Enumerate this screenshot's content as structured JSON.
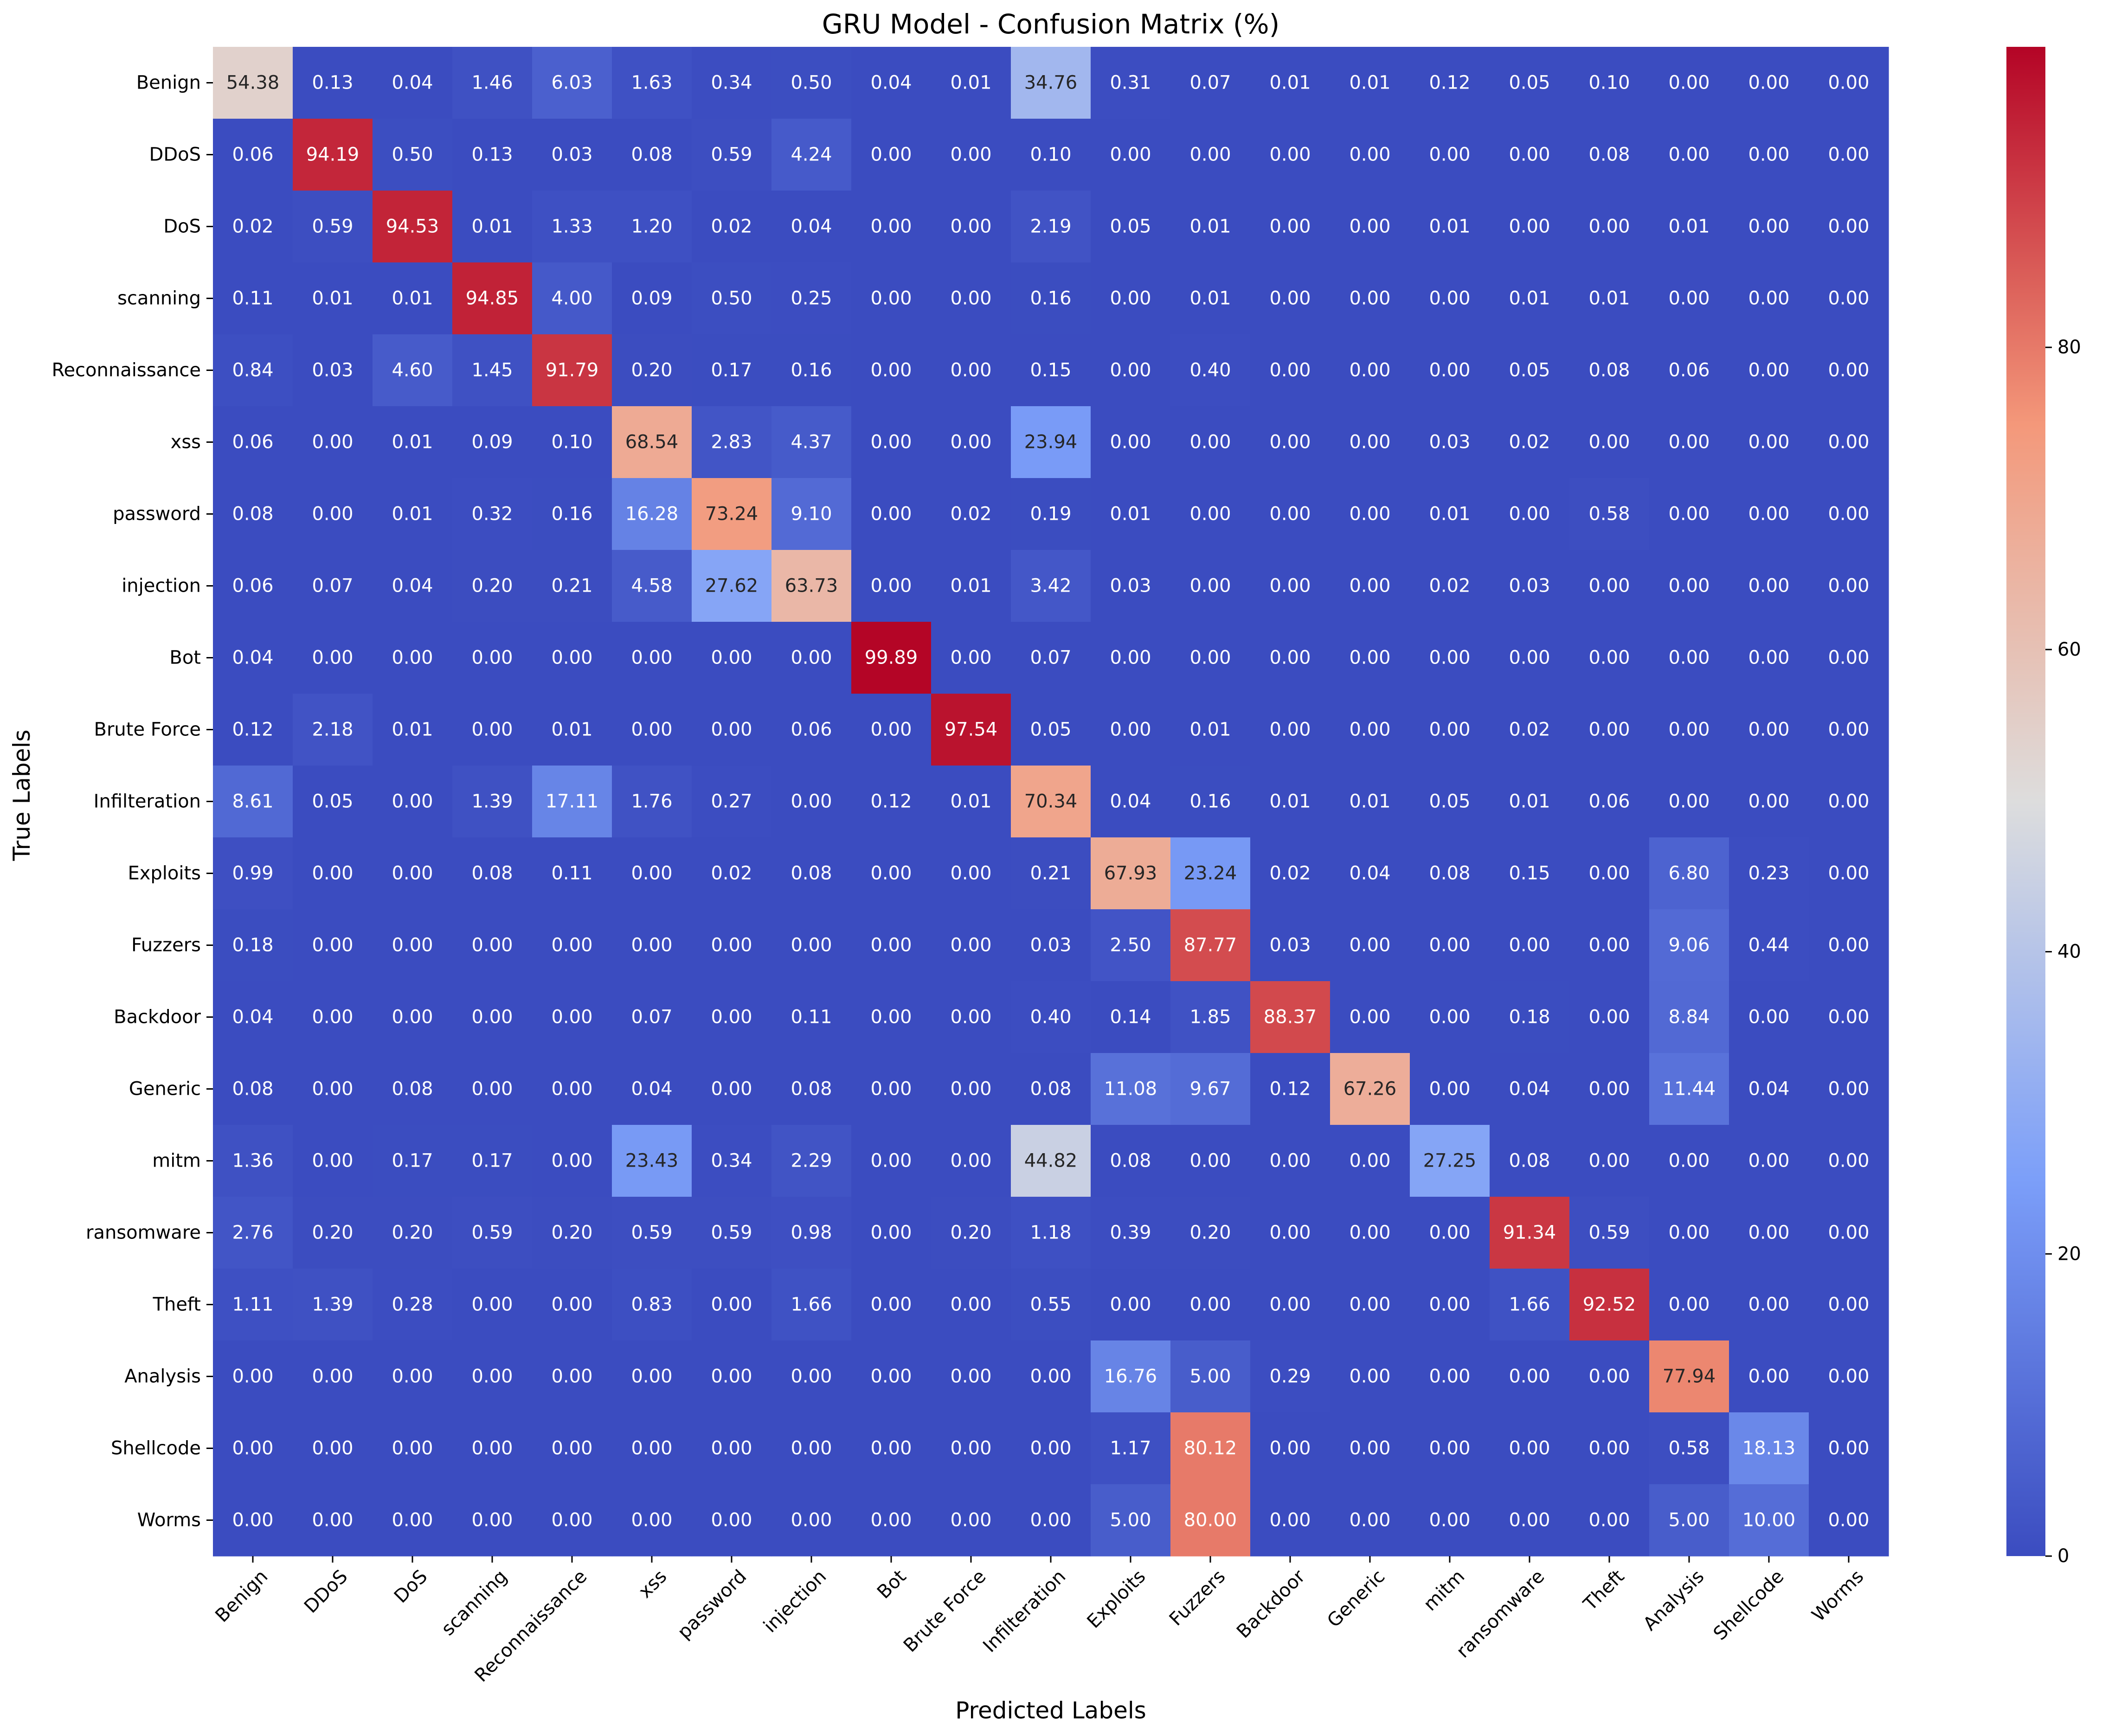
{
  "chart_data": {
    "type": "heatmap",
    "title": "GRU Model - Confusion Matrix (%)",
    "xlabel": "Predicted Labels",
    "ylabel": "True Labels",
    "labels": [
      "Benign",
      "DDoS",
      "DoS",
      "scanning",
      "Reconnaissance",
      "xss",
      "password",
      "injection",
      "Bot",
      "Brute Force",
      "Infilteration",
      "Exploits",
      "Fuzzers",
      "Backdoor",
      "Generic",
      "mitm",
      "ransomware",
      "Theft",
      "Analysis",
      "Shellcode",
      "Worms"
    ],
    "values": [
      [
        54.38,
        0.13,
        0.04,
        1.46,
        6.03,
        1.63,
        0.34,
        0.5,
        0.04,
        0.01,
        34.76,
        0.31,
        0.07,
        0.01,
        0.01,
        0.12,
        0.05,
        0.1,
        0.0,
        0.0,
        0.0
      ],
      [
        0.06,
        94.19,
        0.5,
        0.13,
        0.03,
        0.08,
        0.59,
        4.24,
        0.0,
        0.0,
        0.1,
        0.0,
        0.0,
        0.0,
        0.0,
        0.0,
        0.0,
        0.08,
        0.0,
        0.0,
        0.0
      ],
      [
        0.02,
        0.59,
        94.53,
        0.01,
        1.33,
        1.2,
        0.02,
        0.04,
        0.0,
        0.0,
        2.19,
        0.05,
        0.01,
        0.0,
        0.0,
        0.01,
        0.0,
        0.0,
        0.01,
        0.0,
        0.0
      ],
      [
        0.11,
        0.01,
        0.01,
        94.85,
        4.0,
        0.09,
        0.5,
        0.25,
        0.0,
        0.0,
        0.16,
        0.0,
        0.01,
        0.0,
        0.0,
        0.0,
        0.01,
        0.01,
        0.0,
        0.0,
        0.0
      ],
      [
        0.84,
        0.03,
        4.6,
        1.45,
        91.79,
        0.2,
        0.17,
        0.16,
        0.0,
        0.0,
        0.15,
        0.0,
        0.4,
        0.0,
        0.0,
        0.0,
        0.05,
        0.08,
        0.06,
        0.0,
        0.0
      ],
      [
        0.06,
        0.0,
        0.01,
        0.09,
        0.1,
        68.54,
        2.83,
        4.37,
        0.0,
        0.0,
        23.94,
        0.0,
        0.0,
        0.0,
        0.0,
        0.03,
        0.02,
        0.0,
        0.0,
        0.0,
        0.0
      ],
      [
        0.08,
        0.0,
        0.01,
        0.32,
        0.16,
        16.28,
        73.24,
        9.1,
        0.0,
        0.02,
        0.19,
        0.01,
        0.0,
        0.0,
        0.0,
        0.01,
        0.0,
        0.58,
        0.0,
        0.0,
        0.0
      ],
      [
        0.06,
        0.07,
        0.04,
        0.2,
        0.21,
        4.58,
        27.62,
        63.73,
        0.0,
        0.01,
        3.42,
        0.03,
        0.0,
        0.0,
        0.0,
        0.02,
        0.03,
        0.0,
        0.0,
        0.0,
        0.0
      ],
      [
        0.04,
        0.0,
        0.0,
        0.0,
        0.0,
        0.0,
        0.0,
        0.0,
        99.89,
        0.0,
        0.07,
        0.0,
        0.0,
        0.0,
        0.0,
        0.0,
        0.0,
        0.0,
        0.0,
        0.0,
        0.0
      ],
      [
        0.12,
        2.18,
        0.01,
        0.0,
        0.01,
        0.0,
        0.0,
        0.06,
        0.0,
        97.54,
        0.05,
        0.0,
        0.01,
        0.0,
        0.0,
        0.0,
        0.02,
        0.0,
        0.0,
        0.0,
        0.0
      ],
      [
        8.61,
        0.05,
        0.0,
        1.39,
        17.11,
        1.76,
        0.27,
        0.0,
        0.12,
        0.01,
        70.34,
        0.04,
        0.16,
        0.01,
        0.01,
        0.05,
        0.01,
        0.06,
        0.0,
        0.0,
        0.0
      ],
      [
        0.99,
        0.0,
        0.0,
        0.08,
        0.11,
        0.0,
        0.02,
        0.08,
        0.0,
        0.0,
        0.21,
        67.93,
        23.24,
        0.02,
        0.04,
        0.08,
        0.15,
        0.0,
        6.8,
        0.23,
        0.0
      ],
      [
        0.18,
        0.0,
        0.0,
        0.0,
        0.0,
        0.0,
        0.0,
        0.0,
        0.0,
        0.0,
        0.03,
        2.5,
        87.77,
        0.03,
        0.0,
        0.0,
        0.0,
        0.0,
        9.06,
        0.44,
        0.0
      ],
      [
        0.04,
        0.0,
        0.0,
        0.0,
        0.0,
        0.07,
        0.0,
        0.11,
        0.0,
        0.0,
        0.4,
        0.14,
        1.85,
        88.37,
        0.0,
        0.0,
        0.18,
        0.0,
        8.84,
        0.0,
        0.0
      ],
      [
        0.08,
        0.0,
        0.08,
        0.0,
        0.0,
        0.04,
        0.0,
        0.08,
        0.0,
        0.0,
        0.08,
        11.08,
        9.67,
        0.12,
        67.26,
        0.0,
        0.04,
        0.0,
        11.44,
        0.04,
        0.0
      ],
      [
        1.36,
        0.0,
        0.17,
        0.17,
        0.0,
        23.43,
        0.34,
        2.29,
        0.0,
        0.0,
        44.82,
        0.08,
        0.0,
        0.0,
        0.0,
        27.25,
        0.08,
        0.0,
        0.0,
        0.0,
        0.0
      ],
      [
        2.76,
        0.2,
        0.2,
        0.59,
        0.2,
        0.59,
        0.59,
        0.98,
        0.0,
        0.2,
        1.18,
        0.39,
        0.2,
        0.0,
        0.0,
        0.0,
        91.34,
        0.59,
        0.0,
        0.0,
        0.0
      ],
      [
        1.11,
        1.39,
        0.28,
        0.0,
        0.0,
        0.83,
        0.0,
        1.66,
        0.0,
        0.0,
        0.55,
        0.0,
        0.0,
        0.0,
        0.0,
        0.0,
        1.66,
        92.52,
        0.0,
        0.0,
        0.0
      ],
      [
        0.0,
        0.0,
        0.0,
        0.0,
        0.0,
        0.0,
        0.0,
        0.0,
        0.0,
        0.0,
        0.0,
        16.76,
        5.0,
        0.29,
        0.0,
        0.0,
        0.0,
        0.0,
        77.94,
        0.0,
        0.0
      ],
      [
        0.0,
        0.0,
        0.0,
        0.0,
        0.0,
        0.0,
        0.0,
        0.0,
        0.0,
        0.0,
        0.0,
        1.17,
        80.12,
        0.0,
        0.0,
        0.0,
        0.0,
        0.0,
        0.58,
        18.13,
        0.0
      ],
      [
        0.0,
        0.0,
        0.0,
        0.0,
        0.0,
        0.0,
        0.0,
        0.0,
        0.0,
        0.0,
        0.0,
        5.0,
        80.0,
        0.0,
        0.0,
        0.0,
        0.0,
        0.0,
        5.0,
        10.0,
        0.0
      ]
    ],
    "colormap": "coolwarm",
    "colorbar": {
      "min": 0,
      "max": 100,
      "ticks": [
        0,
        20,
        40,
        60,
        80
      ]
    }
  }
}
